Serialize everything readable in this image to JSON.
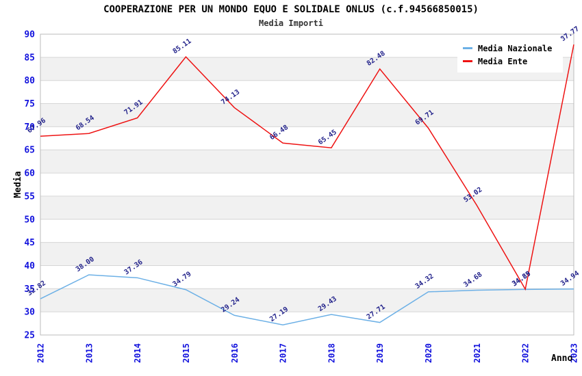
{
  "title": "COOPERAZIONE PER UN MONDO EQUO E SOLIDALE ONLUS (c.f.94566850015)",
  "subtitle": "Media Importi",
  "chart_data": {
    "type": "line",
    "categories": [
      "2012",
      "2013",
      "2014",
      "2015",
      "2016",
      "2017",
      "2018",
      "2019",
      "2020",
      "2021",
      "2022",
      "2023"
    ],
    "series": [
      {
        "name": "Media Nazionale",
        "color": "#6cb0e6",
        "values": [
          32.82,
          38.0,
          37.36,
          34.79,
          29.24,
          27.19,
          29.43,
          27.71,
          34.32,
          34.68,
          34.85,
          34.94
        ]
      },
      {
        "name": "Media Ente",
        "color": "#ee1212",
        "values": [
          67.96,
          68.54,
          71.91,
          85.11,
          74.13,
          66.48,
          65.45,
          82.48,
          69.71,
          53.02,
          34.89,
          87.77
        ]
      }
    ],
    "title": "COOPERAZIONE PER UN MONDO EQUO E SOLIDALE ONLUS (c.f.94566850015)",
    "subtitle": "Media Importi",
    "xlabel": "Anno",
    "ylabel": "Media",
    "y_axis": {
      "min": 25,
      "max": 90,
      "step": 5
    },
    "grid": true,
    "legend_position": "top-right",
    "colors": {
      "band": "#f1f1f1",
      "grid": "#d6d6d6",
      "border": "#bbbbbb",
      "tick": "#1212dd",
      "data_label": "#23238b",
      "title": "#000000",
      "background": "#ffffff"
    }
  }
}
